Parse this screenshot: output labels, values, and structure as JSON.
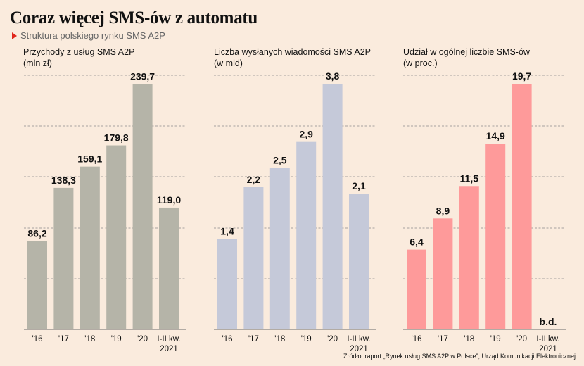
{
  "title": "Coraz więcej SMS-ów z automatu",
  "subtitle": "Struktura polskiego rynku SMS A2P",
  "source": "Źródło: raport „Rynek usług SMS A2P w Polsce”, Urząd Komunikacji Elektronicznej",
  "chart_data": [
    {
      "type": "bar",
      "title": "Przychody z usług SMS A2P",
      "subtitle": "(mln zł)",
      "categories": [
        "'16",
        "'17",
        "'18",
        "'19",
        "'20",
        "I-II kw.|2021"
      ],
      "values": [
        86.2,
        138.3,
        159.1,
        179.8,
        239.7,
        119.0
      ],
      "labels": [
        "86,2",
        "138,3",
        "159,1",
        "179,8",
        "239,7",
        "119,0"
      ],
      "ylim": [
        0,
        240
      ],
      "grid": true,
      "color": "#b5b4a8"
    },
    {
      "type": "bar",
      "title": "Liczba wysłanych wiadomości SMS A2P",
      "subtitle": "(w mld)",
      "categories": [
        "'16",
        "'17",
        "'18",
        "'19",
        "'20",
        "I-II kw.|2021"
      ],
      "values": [
        1.4,
        2.2,
        2.5,
        2.9,
        3.8,
        2.1
      ],
      "labels": [
        "1,4",
        "2,2",
        "2,5",
        "2,9",
        "3,8",
        "2,1"
      ],
      "ylim": [
        0,
        3.8
      ],
      "grid": true,
      "color": "#c5c9d9"
    },
    {
      "type": "bar",
      "title": "Udział w ogólnej liczbie SMS-ów",
      "subtitle": "(w proc.)",
      "categories": [
        "'16",
        "'17",
        "'18",
        "'19",
        "'20",
        "I-II kw.|2021"
      ],
      "values": [
        6.4,
        8.9,
        11.5,
        14.9,
        19.7,
        null
      ],
      "labels": [
        "6,4",
        "8,9",
        "11,5",
        "14,9",
        "19,7",
        "b.d."
      ],
      "ylim": [
        0,
        19.7
      ],
      "grid": true,
      "color": "#fe9a9a"
    }
  ]
}
